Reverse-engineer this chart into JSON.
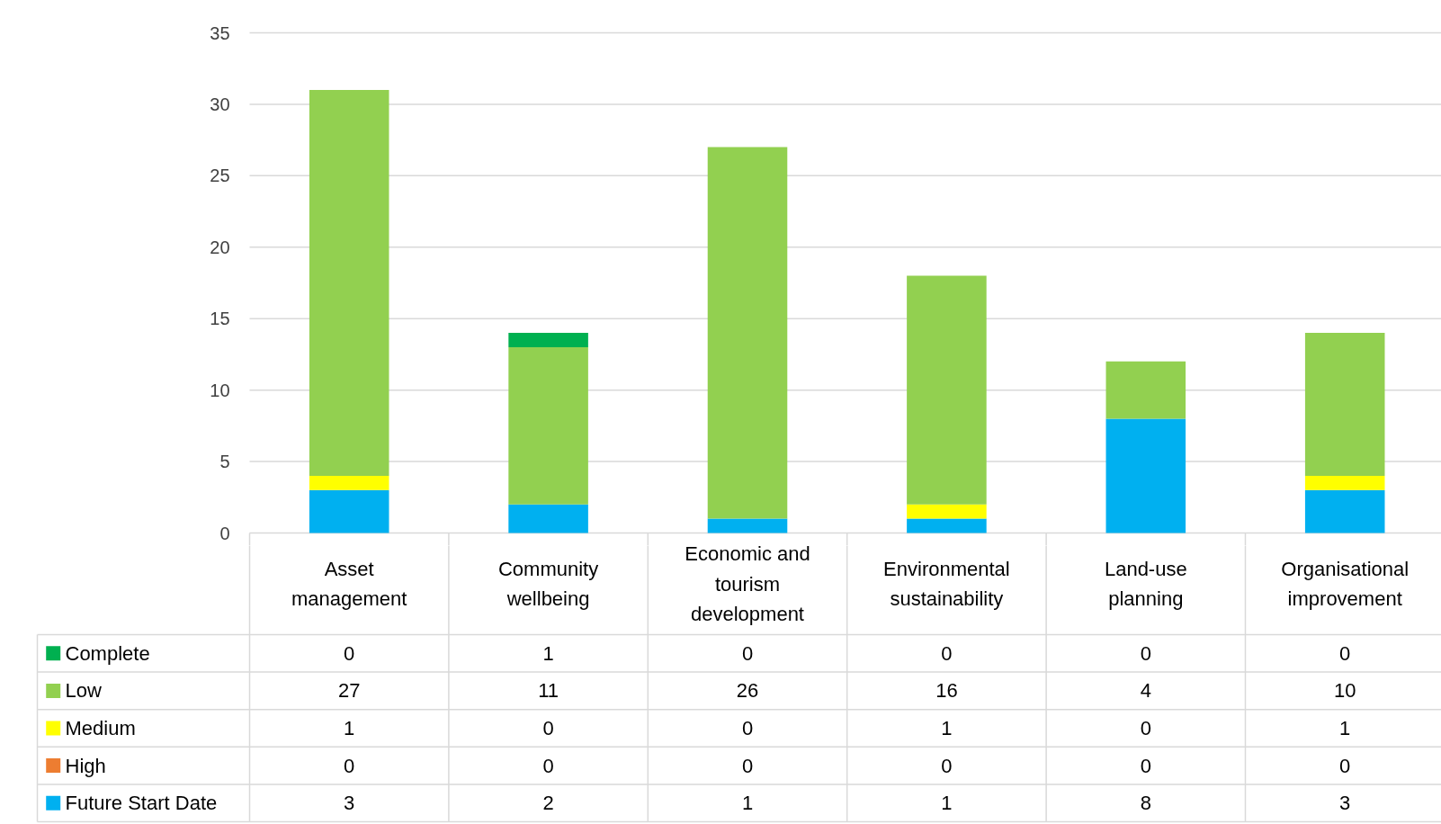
{
  "chart_data": {
    "type": "bar",
    "stacked": true,
    "categories": [
      "Asset management",
      "Community wellbeing",
      "Economic and tourism development",
      "Environmental sustainability",
      "Land-use planning",
      "Organisational improvement"
    ],
    "series": [
      {
        "name": "Future Start Date",
        "color": "#00b0f0",
        "values": [
          3,
          2,
          1,
          1,
          8,
          3
        ]
      },
      {
        "name": "High",
        "color": "#ed7d31",
        "values": [
          0,
          0,
          0,
          0,
          0,
          0
        ]
      },
      {
        "name": "Medium",
        "color": "#ffff00",
        "values": [
          1,
          0,
          0,
          1,
          0,
          1
        ]
      },
      {
        "name": "Low",
        "color": "#92d050",
        "values": [
          27,
          11,
          26,
          16,
          4,
          10
        ]
      },
      {
        "name": "Complete",
        "color": "#00b050",
        "values": [
          0,
          1,
          0,
          0,
          0,
          0
        ]
      }
    ],
    "ylim": [
      0,
      35
    ],
    "yticks": [
      0,
      5,
      10,
      15,
      20,
      25,
      30,
      35
    ],
    "grid": "y",
    "legend": "bottom",
    "data_labels": true
  }
}
